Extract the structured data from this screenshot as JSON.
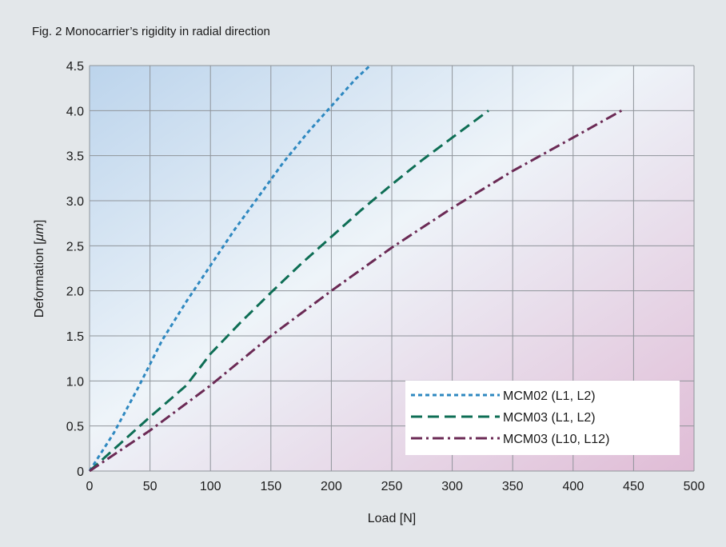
{
  "figure_title": "Fig. 2  Monocarrier’s rigidity in radial direction",
  "chart_data": {
    "type": "line",
    "xlabel": "Load [N]",
    "ylabel_prefix": "Deformation [",
    "ylabel_unit": "μm",
    "ylabel_suffix": "]",
    "xlim": [
      0,
      500
    ],
    "ylim": [
      0,
      4.5
    ],
    "x_ticks": [
      "0",
      "50",
      "100",
      "150",
      "200",
      "250",
      "300",
      "350",
      "400",
      "450",
      "500"
    ],
    "y_ticks": [
      "0",
      "0.5",
      "1.0",
      "1.5",
      "2.0",
      "2.5",
      "3.0",
      "3.5",
      "4.0",
      "4.5"
    ],
    "x_tick_values": [
      0,
      50,
      100,
      150,
      200,
      250,
      300,
      350,
      400,
      450,
      500
    ],
    "y_tick_values": [
      0,
      0.5,
      1.0,
      1.5,
      2.0,
      2.5,
      3.0,
      3.5,
      4.0,
      4.5
    ],
    "grid": true,
    "legend_position": "bottom-right",
    "series": [
      {
        "name": "MCM02 (L1, L2)",
        "color": "#2e88c0",
        "dash": "short-dash",
        "x": [
          0,
          20,
          40,
          60,
          80,
          100,
          120,
          140,
          160,
          180,
          200,
          220,
          232
        ],
        "y": [
          0,
          0.42,
          0.92,
          1.45,
          1.88,
          2.28,
          2.68,
          3.05,
          3.42,
          3.75,
          4.05,
          4.35,
          4.5
        ]
      },
      {
        "name": "MCM03 (L1, L2)",
        "color": "#0e6e55",
        "dash": "long-dash",
        "x": [
          0,
          25,
          50,
          80,
          100,
          125,
          150,
          175,
          200,
          225,
          250,
          275,
          300,
          330
        ],
        "y": [
          0,
          0.3,
          0.6,
          0.95,
          1.3,
          1.65,
          1.98,
          2.3,
          2.6,
          2.9,
          3.18,
          3.45,
          3.7,
          4.0
        ]
      },
      {
        "name": "MCM03 (L10, L12)",
        "color": "#6b2a55",
        "dash": "dash-dot",
        "x": [
          0,
          50,
          100,
          150,
          200,
          250,
          300,
          350,
          400,
          440
        ],
        "y": [
          0,
          0.45,
          0.95,
          1.5,
          2.0,
          2.48,
          2.92,
          3.33,
          3.7,
          4.0
        ]
      }
    ]
  }
}
